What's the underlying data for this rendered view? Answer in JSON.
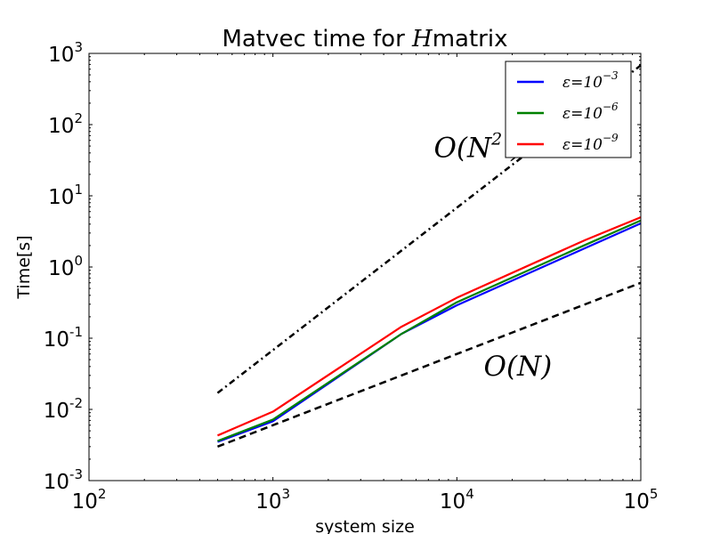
{
  "chart_data": {
    "type": "line",
    "title_prefix": "Matvec time for ",
    "title_symbol": "H",
    "title_suffix": "matrix",
    "xlabel": "system size",
    "ylabel": "Time[s]",
    "xscale": "log",
    "yscale": "log",
    "xlim": [
      100,
      100000
    ],
    "ylim": [
      0.001,
      1000
    ],
    "grid": false,
    "legend_position": "top-right",
    "x_ticks": [
      {
        "base": "10",
        "exp": "2",
        "value": 100
      },
      {
        "base": "10",
        "exp": "3",
        "value": 1000
      },
      {
        "base": "10",
        "exp": "4",
        "value": 10000
      },
      {
        "base": "10",
        "exp": "5",
        "value": 100000
      }
    ],
    "y_ticks": [
      {
        "base": "10",
        "exp": "-3",
        "value": 0.001
      },
      {
        "base": "10",
        "exp": "-2",
        "value": 0.01
      },
      {
        "base": "10",
        "exp": "-1",
        "value": 0.1
      },
      {
        "base": "10",
        "exp": "0",
        "value": 1
      },
      {
        "base": "10",
        "exp": "1",
        "value": 10
      },
      {
        "base": "10",
        "exp": "2",
        "value": 100
      },
      {
        "base": "10",
        "exp": "3",
        "value": 1000
      }
    ],
    "series": [
      {
        "name": "ε = 10^-3",
        "legend_base": "ε=10",
        "legend_exp": "−3",
        "color": "#0000ff",
        "style": "solid",
        "x": [
          500,
          1000,
          5000,
          10000,
          50000,
          100000
        ],
        "y": [
          0.0035,
          0.0068,
          0.115,
          0.29,
          1.85,
          4.1
        ]
      },
      {
        "name": "ε = 10^-6",
        "legend_base": "ε=10",
        "legend_exp": "−6",
        "color": "#008000",
        "style": "solid",
        "x": [
          500,
          1000,
          5000,
          10000,
          50000,
          100000
        ],
        "y": [
          0.0036,
          0.0072,
          0.115,
          0.32,
          2.05,
          4.5
        ]
      },
      {
        "name": "ε = 10^-9",
        "legend_base": "ε=10",
        "legend_exp": "−9",
        "color": "#ff0000",
        "style": "solid",
        "x": [
          500,
          1000,
          5000,
          10000,
          50000,
          100000
        ],
        "y": [
          0.0043,
          0.0093,
          0.145,
          0.37,
          2.4,
          5.0
        ]
      }
    ],
    "reference_lines": [
      {
        "label": "O(N)",
        "color": "#000000",
        "style": "dashed",
        "x": [
          500,
          100000
        ],
        "y": [
          0.003,
          0.6
        ]
      },
      {
        "label": "O(N^2)",
        "color": "#000000",
        "style": "dashdot",
        "x": [
          500,
          100000
        ],
        "y": [
          0.017,
          680
        ]
      }
    ],
    "annotations": [
      {
        "id": "on",
        "prefix": "O(N",
        "exp": "",
        "suffix": ")",
        "x": 14000,
        "y": 0.03
      },
      {
        "id": "on2",
        "prefix": "O(N",
        "exp": "2",
        "suffix": " )",
        "x": 7500,
        "y": 35
      }
    ]
  }
}
